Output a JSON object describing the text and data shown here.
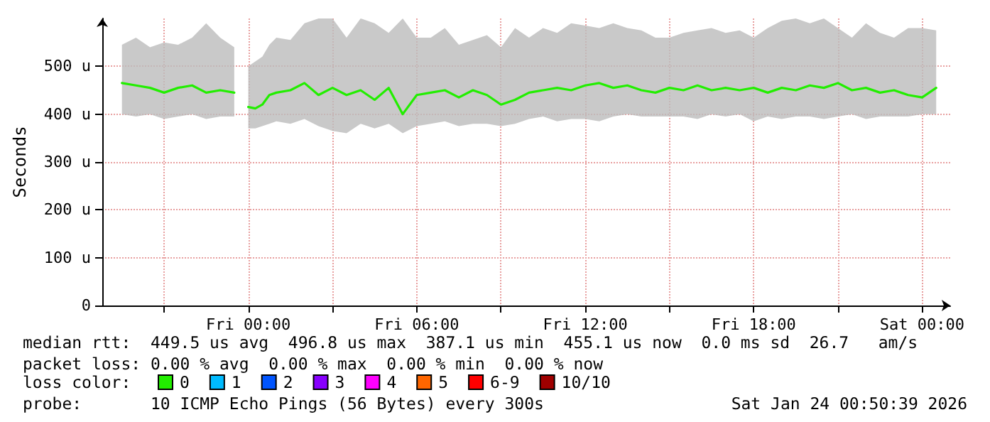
{
  "chart_data": {
    "type": "line",
    "ylabel": "Seconds",
    "legend_title": "loss color:",
    "legend": "bottom",
    "grid": true,
    "marker": "none",
    "xlim": [
      "2026-01-22T18:48",
      "2026-01-24T01:00"
    ],
    "xticks": [
      {
        "value": "2026-01-22T21:00",
        "label": null
      },
      {
        "value": "2026-01-23T00:00",
        "label": "Fri 00:00"
      },
      {
        "value": "2026-01-23T03:00",
        "label": null
      },
      {
        "value": "2026-01-23T06:00",
        "label": "Fri 06:00"
      },
      {
        "value": "2026-01-23T09:00",
        "label": null
      },
      {
        "value": "2026-01-23T12:00",
        "label": "Fri 12:00"
      },
      {
        "value": "2026-01-23T15:00",
        "label": null
      },
      {
        "value": "2026-01-23T18:00",
        "label": "Fri 18:00"
      },
      {
        "value": "2026-01-23T21:00",
        "label": null
      },
      {
        "value": "2026-01-24T00:00",
        "label": "Sat 00:00"
      }
    ],
    "ylim": [
      0,
      600
    ],
    "yticks": [
      0,
      {
        "value": 100,
        "label": "100 u"
      },
      {
        "value": 200,
        "label": "200 u"
      },
      {
        "value": 300,
        "label": "300 u"
      },
      {
        "value": 400,
        "label": "400 u"
      },
      {
        "value": 500,
        "label": "500 u"
      }
    ],
    "x": [
      "2026-01-22T19:30",
      "2026-01-22T20:00",
      "2026-01-22T20:30",
      "2026-01-22T21:00",
      "2026-01-22T21:30",
      "2026-01-22T22:00",
      "2026-01-22T22:30",
      "2026-01-22T23:00",
      "2026-01-22T23:30",
      "2026-01-22T23:45",
      "2026-01-23T00:00",
      "2026-01-23T00:15",
      "2026-01-23T00:30",
      "2026-01-23T00:45",
      "2026-01-23T01:00",
      "2026-01-23T01:30",
      "2026-01-23T02:00",
      "2026-01-23T02:30",
      "2026-01-23T03:00",
      "2026-01-23T03:30",
      "2026-01-23T04:00",
      "2026-01-23T04:30",
      "2026-01-23T05:00",
      "2026-01-23T05:30",
      "2026-01-23T06:00",
      "2026-01-23T06:30",
      "2026-01-23T07:00",
      "2026-01-23T07:30",
      "2026-01-23T08:00",
      "2026-01-23T08:30",
      "2026-01-23T09:00",
      "2026-01-23T09:30",
      "2026-01-23T10:00",
      "2026-01-23T10:30",
      "2026-01-23T11:00",
      "2026-01-23T11:30",
      "2026-01-23T12:00",
      "2026-01-23T12:30",
      "2026-01-23T13:00",
      "2026-01-23T13:30",
      "2026-01-23T14:00",
      "2026-01-23T14:30",
      "2026-01-23T15:00",
      "2026-01-23T15:30",
      "2026-01-23T16:00",
      "2026-01-23T16:30",
      "2026-01-23T17:00",
      "2026-01-23T17:30",
      "2026-01-23T18:00",
      "2026-01-23T18:30",
      "2026-01-23T19:00",
      "2026-01-23T19:30",
      "2026-01-23T20:00",
      "2026-01-23T20:30",
      "2026-01-23T21:00",
      "2026-01-23T21:30",
      "2026-01-23T22:00",
      "2026-01-23T22:30",
      "2026-01-23T23:00",
      "2026-01-23T23:30",
      "2026-01-24T00:00",
      "2026-01-24T00:30"
    ],
    "series": [
      {
        "name": "0",
        "color": "#22ee00",
        "values": [
          465,
          460,
          455,
          445,
          455,
          460,
          445,
          450,
          445,
          null,
          415,
          412,
          420,
          440,
          445,
          450,
          465,
          440,
          455,
          440,
          450,
          430,
          455,
          400,
          440,
          445,
          450,
          435,
          450,
          440,
          420,
          430,
          445,
          450,
          455,
          450,
          460,
          465,
          455,
          460,
          450,
          445,
          455,
          450,
          460,
          450,
          455,
          450,
          455,
          445,
          455,
          450,
          460,
          455,
          465,
          450,
          455,
          445,
          450,
          440,
          435,
          455
        ],
        "lower": [
          400,
          395,
          400,
          390,
          395,
          400,
          390,
          395,
          395,
          null,
          370,
          370,
          375,
          380,
          385,
          380,
          390,
          375,
          365,
          360,
          380,
          370,
          380,
          360,
          375,
          380,
          385,
          375,
          380,
          380,
          375,
          380,
          390,
          395,
          385,
          390,
          390,
          385,
          395,
          400,
          395,
          395,
          395,
          395,
          390,
          400,
          395,
          400,
          385,
          395,
          390,
          395,
          395,
          390,
          395,
          400,
          390,
          395,
          395,
          395,
          400,
          400
        ],
        "upper": [
          545,
          560,
          540,
          550,
          545,
          560,
          590,
          560,
          540,
          null,
          500,
          510,
          520,
          545,
          560,
          555,
          590,
          600,
          600,
          560,
          600,
          590,
          570,
          600,
          560,
          560,
          580,
          545,
          555,
          565,
          540,
          580,
          560,
          580,
          570,
          590,
          585,
          580,
          590,
          580,
          575,
          560,
          560,
          570,
          575,
          580,
          570,
          575,
          560,
          580,
          595,
          600,
          590,
          600,
          580,
          560,
          590,
          570,
          560,
          580,
          580,
          575
        ]
      },
      {
        "name": "1",
        "color": "#00bbff",
        "values": [
          null,
          null,
          null,
          null,
          null,
          null,
          null,
          null,
          null,
          null,
          null,
          null,
          null,
          null,
          null,
          null,
          null,
          null,
          null,
          null,
          null,
          null,
          null,
          null,
          null,
          null,
          null,
          null,
          null,
          null,
          null,
          null,
          null,
          null,
          null,
          null,
          null,
          null,
          null,
          null,
          null,
          null,
          null,
          null,
          null,
          null,
          null,
          null,
          null,
          null,
          null,
          null,
          null,
          null,
          null,
          null,
          null,
          null,
          null,
          null,
          null,
          null
        ]
      },
      {
        "name": "2",
        "color": "#0055ff",
        "values": [
          null,
          null,
          null,
          null,
          null,
          null,
          null,
          null,
          null,
          null,
          null,
          null,
          null,
          null,
          null,
          null,
          null,
          null,
          null,
          null,
          null,
          null,
          null,
          null,
          null,
          null,
          null,
          null,
          null,
          null,
          null,
          null,
          null,
          null,
          null,
          null,
          null,
          null,
          null,
          null,
          null,
          null,
          null,
          null,
          null,
          null,
          null,
          null,
          null,
          null,
          null,
          null,
          null,
          null,
          null,
          null,
          null,
          null,
          null,
          null,
          null,
          null
        ]
      },
      {
        "name": "3",
        "color": "#8800ff",
        "values": [
          null,
          null,
          null,
          null,
          null,
          null,
          null,
          null,
          null,
          null,
          null,
          null,
          null,
          null,
          null,
          null,
          null,
          null,
          null,
          null,
          null,
          null,
          null,
          null,
          null,
          null,
          null,
          null,
          null,
          null,
          null,
          null,
          null,
          null,
          null,
          null,
          null,
          null,
          null,
          null,
          null,
          null,
          null,
          null,
          null,
          null,
          null,
          null,
          null,
          null,
          null,
          null,
          null,
          null,
          null,
          null,
          null,
          null,
          null,
          null,
          null,
          null
        ]
      },
      {
        "name": "4",
        "color": "#ff00ff",
        "values": [
          null,
          null,
          null,
          null,
          null,
          null,
          null,
          null,
          null,
          null,
          null,
          null,
          null,
          null,
          null,
          null,
          null,
          null,
          null,
          null,
          null,
          null,
          null,
          null,
          null,
          null,
          null,
          null,
          null,
          null,
          null,
          null,
          null,
          null,
          null,
          null,
          null,
          null,
          null,
          null,
          null,
          null,
          null,
          null,
          null,
          null,
          null,
          null,
          null,
          null,
          null,
          null,
          null,
          null,
          null,
          null,
          null,
          null,
          null,
          null,
          null,
          null
        ]
      },
      {
        "name": "5",
        "color": "#ff6600",
        "values": [
          null,
          null,
          null,
          null,
          null,
          null,
          null,
          null,
          null,
          null,
          null,
          null,
          null,
          null,
          null,
          null,
          null,
          null,
          null,
          null,
          null,
          null,
          null,
          null,
          null,
          null,
          null,
          null,
          null,
          null,
          null,
          null,
          null,
          null,
          null,
          null,
          null,
          null,
          null,
          null,
          null,
          null,
          null,
          null,
          null,
          null,
          null,
          null,
          null,
          null,
          null,
          null,
          null,
          null,
          null,
          null,
          null,
          null,
          null,
          null,
          null,
          null
        ]
      },
      {
        "name": "6-9",
        "color": "#ff0000",
        "values": [
          null,
          null,
          null,
          null,
          null,
          null,
          null,
          null,
          null,
          null,
          null,
          null,
          null,
          null,
          null,
          null,
          null,
          null,
          null,
          null,
          null,
          null,
          null,
          null,
          null,
          null,
          null,
          null,
          null,
          null,
          null,
          null,
          null,
          null,
          null,
          null,
          null,
          null,
          null,
          null,
          null,
          null,
          null,
          null,
          null,
          null,
          null,
          null,
          null,
          null,
          null,
          null,
          null,
          null,
          null,
          null,
          null,
          null,
          null,
          null,
          null,
          null
        ]
      },
      {
        "name": "10/10",
        "color": "#a00000",
        "values": [
          null,
          null,
          null,
          null,
          null,
          null,
          null,
          null,
          null,
          null,
          null,
          null,
          null,
          null,
          null,
          null,
          null,
          null,
          null,
          null,
          null,
          null,
          null,
          null,
          null,
          null,
          null,
          null,
          null,
          null,
          null,
          null,
          null,
          null,
          null,
          null,
          null,
          null,
          null,
          null,
          null,
          null,
          null,
          null,
          null,
          null,
          null,
          null,
          null,
          null,
          null,
          null,
          null,
          null,
          null,
          null,
          null,
          null,
          null,
          null,
          null,
          null
        ]
      }
    ],
    "annotations": [
      "median rtt:  449.5 us avg  496.8 us max  387.1 us min  455.1 us now  0.0 ms sd  26.7   am/s",
      "packet loss: 0.00 % avg  0.00 % max  0.00 % min  0.00 % now",
      "probe:       10 ICMP Echo Pings (56 Bytes) every 300s",
      "Sat Jan 24 00:50:39 2026"
    ]
  }
}
